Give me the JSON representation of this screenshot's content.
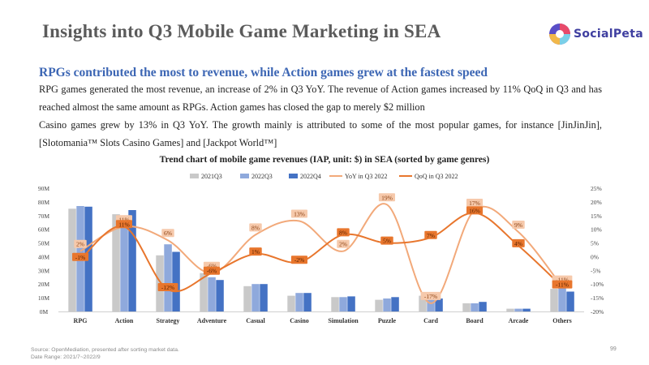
{
  "header": {
    "title": "Insights into Q3 Mobile Game Marketing in SEA",
    "logo_text": "SocialPeta"
  },
  "content": {
    "subtitle": "RPGs contributed the most to revenue, while Action games grew at the fastest speed",
    "paragraph1": "RPG games generated the most revenue, an increase of 2% in Q3 YoY. The revenue of Action games increased by 11% QoQ  in Q3 and has reached almost the same amount as RPGs. Action games has closed the gap to merely $2 million",
    "paragraph2": "Casino games grew by 13% in Q3 YoY. The growth mainly is attributed to some of the most popular games, for instance [JinJinJin], [Slotomania™ Slots Casino Games] and [Jackpot World™]"
  },
  "colors": {
    "q3_2021": "#c9c9c9",
    "q3_2022": "#8fa9dc",
    "q4_2022": "#4472c4",
    "yoy": "#f2a97a",
    "qoq": "#e8762d"
  },
  "chart_data": {
    "type": "bar",
    "title": "Trend chart of mobile game revenues (IAP, unit: $) in SEA (sorted by game genres)",
    "categories": [
      "RPG",
      "Action",
      "Strategy",
      "Adventure",
      "Casual",
      "Casino",
      "Simulation",
      "Puzzle",
      "Card",
      "Board",
      "Arcade",
      "Others"
    ],
    "series": [
      {
        "name": "2021Q3",
        "type": "bar",
        "axis": "left",
        "values": [
          75,
          71,
          41,
          28,
          18.5,
          11.5,
          10.5,
          8.5,
          11.5,
          6,
          2,
          16.5
        ]
      },
      {
        "name": "2022Q3",
        "type": "bar",
        "axis": "left",
        "values": [
          77,
          67,
          49,
          25,
          20,
          13.5,
          10.5,
          9.5,
          9.5,
          6,
          2,
          17
        ]
      },
      {
        "name": "2022Q4",
        "type": "bar",
        "axis": "left",
        "values": [
          76.5,
          74,
          43.5,
          23,
          20,
          13.5,
          11,
          10.5,
          9.5,
          7,
          2,
          14.5
        ]
      },
      {
        "name": "YoY in Q3 2022",
        "type": "line",
        "axis": "right",
        "values": [
          2,
          11,
          6,
          -6,
          8,
          13,
          2,
          19,
          -17,
          17,
          9,
          -11
        ]
      },
      {
        "name": "QoQ in Q3 2022",
        "type": "line",
        "axis": "right",
        "values": [
          -1,
          11,
          -12,
          -6,
          1,
          -2,
          8,
          5,
          7,
          16,
          4,
          -11
        ]
      }
    ],
    "data_labels": {
      "yoy": [
        "2%",
        "11%",
        "6%",
        "-6%",
        "8%",
        "13%",
        "2%",
        "19%",
        "-17%",
        "17%",
        "9%",
        "-11%"
      ],
      "qoq": [
        "-1%",
        "11%",
        "-12%",
        "-6%",
        "1%",
        "-2%",
        "8%",
        "5%",
        "7%",
        "16%",
        "4%",
        "-11%"
      ]
    },
    "y_left": {
      "min": 0,
      "max": 90,
      "step": 10,
      "ticks": [
        "0M",
        "10M",
        "20M",
        "30M",
        "40M",
        "50M",
        "60M",
        "70M",
        "80M",
        "90M"
      ]
    },
    "y_right": {
      "min": -20,
      "max": 25,
      "step": 5,
      "ticks": [
        "-20%",
        "-15%",
        "-10%",
        "-5%",
        "0%",
        "5%",
        "10%",
        "15%",
        "20%",
        "25%"
      ]
    },
    "legend_position": "top",
    "grid": false
  },
  "footer": {
    "source": "Source: OpenMediation, presented after sorting market data.",
    "date_range": "Date Range: 2021/7~2022/9",
    "page_number": "99"
  }
}
